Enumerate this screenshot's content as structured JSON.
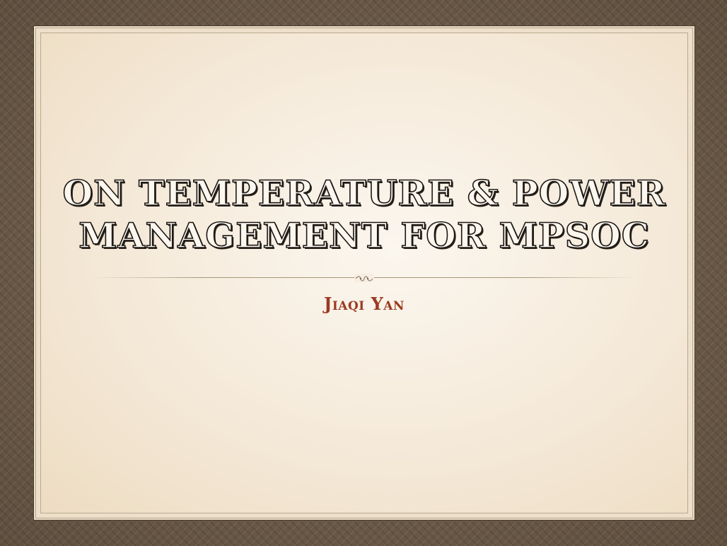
{
  "slide": {
    "title_line1": "ON TEMPERATURE & POWER",
    "title_line2": "MANAGEMENT FOR MPSOC",
    "subtitle": "Jiaqi Yan"
  },
  "colors": {
    "border": "#6b5a48",
    "paper": "#f8efe2",
    "title_outline": "#1a1612",
    "subtitle": "#9a3a22"
  }
}
